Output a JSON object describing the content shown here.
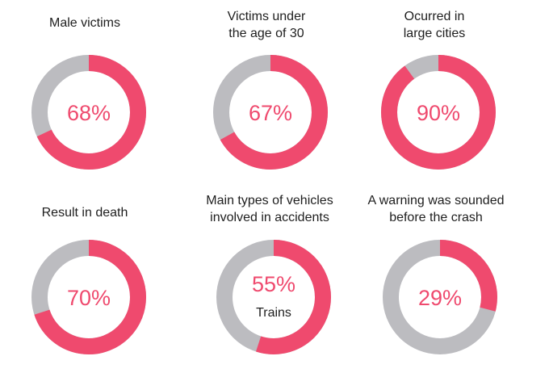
{
  "colors": {
    "accent": "#ef4a6e",
    "track": "#bcbcc0"
  },
  "chart_data": [
    {
      "type": "pie",
      "title": "Male victims",
      "values": [
        68,
        32
      ],
      "label": "68%",
      "sublabel": ""
    },
    {
      "type": "pie",
      "title": "Victims under\nthe age of 30",
      "values": [
        67,
        33
      ],
      "label": "67%",
      "sublabel": ""
    },
    {
      "type": "pie",
      "title": "Ocurred in\nlarge cities",
      "values": [
        90,
        10
      ],
      "label": "90%",
      "sublabel": ""
    },
    {
      "type": "pie",
      "title": "Result in death",
      "values": [
        70,
        30
      ],
      "label": "70%",
      "sublabel": ""
    },
    {
      "type": "pie",
      "title": "Main types of vehicles\ninvolved in accidents",
      "values": [
        55,
        45
      ],
      "label": "55%",
      "sublabel": "Trains"
    },
    {
      "type": "pie",
      "title": "A warning was sounded\nbefore the crash",
      "values": [
        29,
        71
      ],
      "label": "29%",
      "sublabel": ""
    }
  ]
}
